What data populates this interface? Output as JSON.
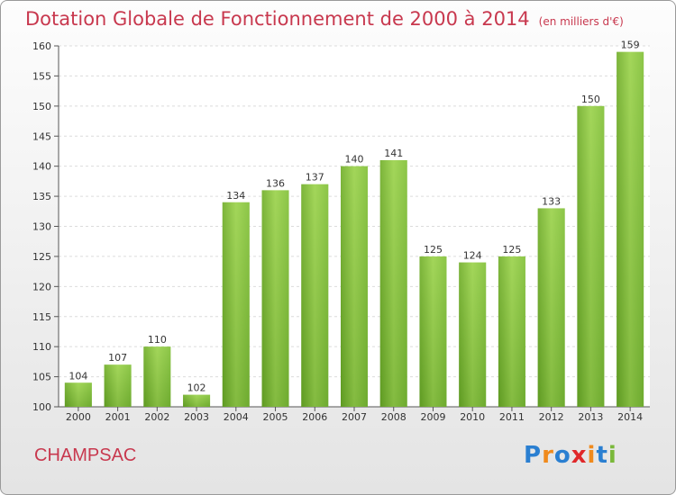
{
  "title": {
    "main": "Dotation Globale de Fonctionnement de 2000 à 2014",
    "unit": "(en milliers d'€)"
  },
  "commune": "CHAMPSAC",
  "logo": {
    "text": "Proxiti",
    "letters": [
      {
        "ch": "P",
        "color": "#2a7fd1"
      },
      {
        "ch": "r",
        "color": "#f08a1c"
      },
      {
        "ch": "o",
        "color": "#2a7fd1"
      },
      {
        "ch": "x",
        "color": "#e0282a"
      },
      {
        "ch": "i",
        "color": "#f08a1c"
      },
      {
        "ch": "t",
        "color": "#2a7fd1"
      },
      {
        "ch": "i",
        "color": "#7ab83a"
      }
    ]
  },
  "chart_data": {
    "type": "bar",
    "categories": [
      "2000",
      "2001",
      "2002",
      "2003",
      "2004",
      "2005",
      "2006",
      "2007",
      "2008",
      "2009",
      "2010",
      "2011",
      "2012",
      "2013",
      "2014"
    ],
    "values": [
      104,
      107,
      110,
      102,
      134,
      136,
      137,
      140,
      141,
      125,
      124,
      125,
      133,
      150,
      159
    ],
    "ylim": [
      100,
      160
    ],
    "yticks": [
      100,
      105,
      110,
      115,
      120,
      125,
      130,
      135,
      140,
      145,
      150,
      155,
      160
    ],
    "grid": true,
    "bar_color": "#7ab83a",
    "bar_color_light": "#a3d65a",
    "bar_color_dark": "#5e9a22"
  }
}
